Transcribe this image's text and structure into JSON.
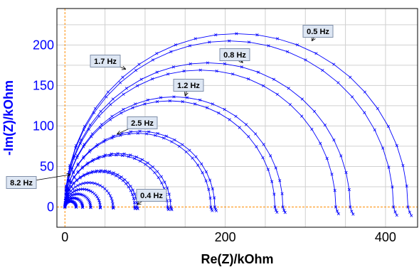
{
  "chart_data": {
    "type": "line",
    "xlabel": "Re(Z)/kOhm",
    "ylabel": "-Im(Z)/kOhm",
    "xlim": [
      -10,
      440
    ],
    "ylim": [
      -25,
      245
    ],
    "x_ticks": [
      0,
      200,
      400
    ],
    "y_ticks": [
      0,
      50,
      100,
      150,
      200
    ],
    "grid": true,
    "series_color": "#0000ff",
    "reference_line_color": "#ff8c00",
    "series": [
      {
        "diameter": 428
      },
      {
        "diameter": 410
      },
      {
        "diameter": 356
      },
      {
        "diameter": 338
      },
      {
        "diameter": 272
      },
      {
        "diameter": 262
      },
      {
        "diameter": 187
      },
      {
        "diameter": 182
      },
      {
        "diameter": 132
      },
      {
        "diameter": 128
      },
      {
        "diameter": 90
      },
      {
        "diameter": 87
      },
      {
        "diameter": 60
      },
      {
        "diameter": 44
      },
      {
        "diameter": 32
      },
      {
        "diameter": 22
      },
      {
        "diameter": 14
      }
    ],
    "annotations": [
      {
        "text": "0.5 Hz",
        "x": 308,
        "y": 205
      },
      {
        "text": "1.7 Hz",
        "x": 76,
        "y": 170
      },
      {
        "text": "0.8 Hz",
        "x": 222,
        "y": 178
      },
      {
        "text": "1.2 Hz",
        "x": 150,
        "y": 137
      },
      {
        "text": "2.5 Hz",
        "x": 65,
        "y": 90
      },
      {
        "text": "8.2 Hz",
        "x": 7,
        "y": 40
      },
      {
        "text": "0.4 Hz",
        "x": 90,
        "y": 3
      }
    ]
  }
}
